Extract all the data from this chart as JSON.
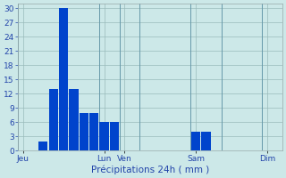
{
  "title": "",
  "xlabel": "Précipitations 24h ( mm )",
  "ylabel": "",
  "background_color": "#cce8e8",
  "bar_color": "#0044cc",
  "ylim": [
    0,
    31
  ],
  "yticks": [
    0,
    3,
    6,
    9,
    12,
    15,
    18,
    21,
    24,
    27,
    30
  ],
  "grid_color": "#99bbbb",
  "day_labels": [
    "Jeu",
    "Lun",
    "Ven",
    "Sam",
    "Dim"
  ],
  "day_tick_positions": [
    0,
    8,
    10,
    17,
    24
  ],
  "bar_positions": [
    2,
    3,
    4,
    5,
    6,
    7,
    8,
    9,
    17,
    18
  ],
  "bar_heights": [
    2,
    13,
    30,
    13,
    8,
    8,
    6,
    6,
    4,
    4
  ],
  "xlim": [
    -0.5,
    25.5
  ],
  "bar_width": 0.9
}
